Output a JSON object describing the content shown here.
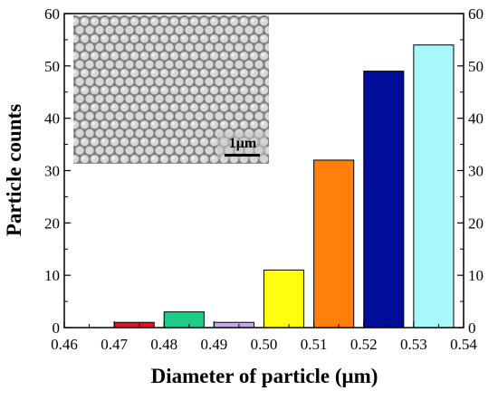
{
  "chart_data": {
    "type": "bar",
    "xlabel": "Diameter of particle (μm)",
    "ylabel": "Particle counts",
    "xlim": [
      0.46,
      0.54
    ],
    "ylim": [
      0,
      60
    ],
    "x_ticks": [
      "0.46",
      "0.47",
      "0.48",
      "0.49",
      "0.50",
      "0.51",
      "0.52",
      "0.53",
      "0.54"
    ],
    "y_ticks": [
      "0",
      "10",
      "20",
      "30",
      "40",
      "50",
      "60"
    ],
    "right_axis_mirrors_left": true,
    "bars": [
      {
        "x": 0.474,
        "value": 1,
        "color": "#e8101f"
      },
      {
        "x": 0.484,
        "value": 3,
        "color": "#1fcc8a"
      },
      {
        "x": 0.494,
        "value": 1,
        "color": "#c7a8ee"
      },
      {
        "x": 0.504,
        "value": 11,
        "color": "#ffff10"
      },
      {
        "x": 0.514,
        "value": 32,
        "color": "#ff800a"
      },
      {
        "x": 0.524,
        "value": 49,
        "color": "#000d99"
      },
      {
        "x": 0.534,
        "value": 54,
        "color": "#a6f8fb"
      }
    ],
    "bar_width": 0.008,
    "inset": {
      "description": "SEM micrograph of close-packed spheres",
      "scale_bar_label": "1μm"
    }
  }
}
